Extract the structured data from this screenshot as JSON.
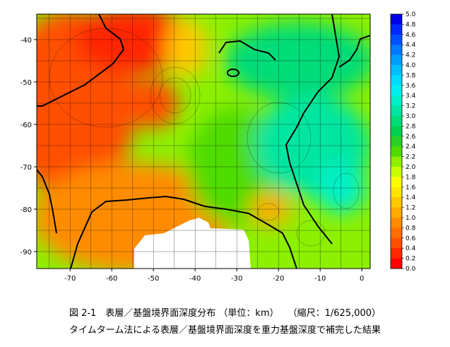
{
  "map": {
    "x_ticks": [
      "-70",
      "-60",
      "-50",
      "-40",
      "-30",
      "-20",
      "-10",
      "0"
    ],
    "y_ticks": [
      "-40",
      "-50",
      "-60",
      "-70",
      "-80",
      "-90"
    ],
    "x_range": [
      -78,
      2
    ],
    "y_range": [
      -94,
      -34
    ],
    "colorbar": {
      "labels": [
        "5.0",
        "4.8",
        "4.6",
        "4.4",
        "4.2",
        "4.0",
        "3.8",
        "3.6",
        "3.4",
        "3.2",
        "3.0",
        "2.8",
        "2.6",
        "2.4",
        "2.2",
        "2.0",
        "1.8",
        "1.6",
        "1.4",
        "1.2",
        "1.0",
        "0.8",
        "0.6",
        "0.4",
        "0.2",
        "0.0"
      ],
      "colors": [
        "#0000e6",
        "#0028ff",
        "#0050ff",
        "#0078ff",
        "#00a0ff",
        "#00c0ff",
        "#00dcff",
        "#00f0f0",
        "#00f0c8",
        "#00e6a0",
        "#00dc78",
        "#00d250",
        "#28d228",
        "#50dc00",
        "#8cf000",
        "#c8ff00",
        "#ffff00",
        "#ffe600",
        "#ffc800",
        "#ffaa00",
        "#ff8c00",
        "#ff6e00",
        "#ff5000",
        "#ff2800",
        "#ff0000"
      ]
    },
    "regions": [
      {
        "name": "region-west-shallow",
        "color": "#ff5000",
        "x": -70,
        "y": -55,
        "rx": 16,
        "ry": 22
      },
      {
        "name": "region-northwest",
        "color": "#ff2800",
        "x": -55,
        "y": -40,
        "rx": 14,
        "ry": 8
      },
      {
        "name": "region-west-central",
        "color": "#ff5000",
        "x": -50,
        "y": -55,
        "rx": 6,
        "ry": 6
      },
      {
        "name": "region-southwest",
        "color": "#ff8c00",
        "x": -55,
        "y": -82,
        "rx": 24,
        "ry": 13
      },
      {
        "name": "region-north-central",
        "color": "#ffc800",
        "x": -42,
        "y": -42,
        "rx": 5,
        "ry": 7
      },
      {
        "name": "region-central",
        "color": "#50dc00",
        "x": -30,
        "y": -70,
        "rx": 12,
        "ry": 14
      },
      {
        "name": "region-northeast",
        "color": "#00dc78",
        "x": -15,
        "y": -45,
        "rx": 18,
        "ry": 9
      },
      {
        "name": "region-east",
        "color": "#00e6a0",
        "x": -12,
        "y": -65,
        "rx": 14,
        "ry": 12
      },
      {
        "name": "region-deep-east",
        "color": "#00f0c8",
        "x": -5,
        "y": -75,
        "rx": 6,
        "ry": 6
      },
      {
        "name": "region-south-central",
        "color": "#ffaa00",
        "x": -22,
        "y": -80,
        "rx": 5,
        "ry": 4
      }
    ],
    "no_data": "#ffffff"
  },
  "caption": {
    "line1": "図 2-1　表層／基盤境界面深度分布 （単位：km）　　（縮尺：1/625,000）",
    "line2": "タイムターム法による表層／基盤境界面深度を重力基盤深度で補完した結果"
  }
}
